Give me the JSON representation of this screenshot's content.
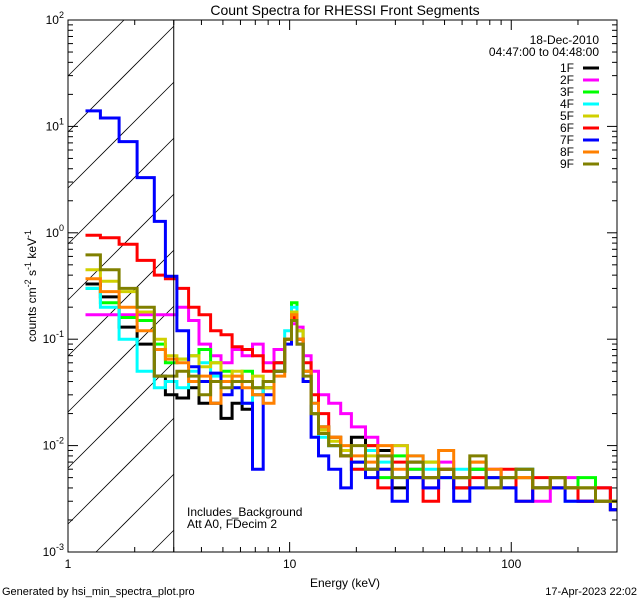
{
  "chart_data": {
    "type": "line",
    "title": "Count Spectra for RHESSI Front Segments",
    "xlabel": "Energy (keV)",
    "ylabel": "counts cm-2 s-1 keV-1",
    "xscale": "log",
    "yscale": "log",
    "xlim": [
      1,
      300
    ],
    "ylim": [
      0.001,
      100
    ],
    "x_ticks": [
      {
        "v": 1,
        "label": "1"
      },
      {
        "v": 10,
        "label": "10"
      },
      {
        "v": 100,
        "label": "100"
      }
    ],
    "y_ticks": [
      {
        "v": 0.001,
        "exp": "-3"
      },
      {
        "v": 0.01,
        "exp": "-2"
      },
      {
        "v": 0.1,
        "exp": "-1"
      },
      {
        "v": 1,
        "exp": "0"
      },
      {
        "v": 10,
        "exp": "1"
      },
      {
        "v": 100,
        "exp": "2"
      }
    ],
    "excluded_region_keV": [
      1,
      3
    ],
    "date": "18-Dec-2010",
    "time_range": "04:47:00 to 04:48:00",
    "annotations": [
      "Includes_Background",
      "Att A0, FDecim 2"
    ],
    "legend_position": "top-right",
    "bin_edges_keV": [
      1.2,
      1.4,
      1.7,
      2.05,
      2.45,
      2.75,
      3.1,
      3.5,
      3.9,
      4.4,
      4.9,
      5.5,
      6.1,
      6.8,
      7.6,
      8.5,
      9.5,
      10.2,
      10.8,
      11.5,
      12.5,
      13.5,
      15,
      17,
      19,
      22,
      25,
      29,
      34,
      40,
      47,
      55,
      65,
      77,
      90,
      105,
      125,
      150,
      175,
      200,
      240,
      280,
      300
    ],
    "series": [
      {
        "name": "1F",
        "color": "#000000",
        "values": [
          0.33,
          0.25,
          0.13,
          0.09,
          0.045,
          0.03,
          0.028,
          0.035,
          0.025,
          0.025,
          0.018,
          0.025,
          0.022,
          0.03,
          0.035,
          0.06,
          0.1,
          0.15,
          0.1,
          0.05,
          0.02,
          0.015,
          0.01,
          0.008,
          0.012,
          0.006,
          0.009,
          0.004,
          0.007,
          0.005,
          0.006,
          0.004,
          0.006,
          0.005,
          0.004,
          0.006,
          0.004,
          0.005,
          0.004,
          0.003,
          0.004,
          0.0025
        ]
      },
      {
        "name": "2F",
        "color": "#ff00ff",
        "values": [
          0.17,
          0.17,
          0.17,
          0.17,
          0.17,
          0.17,
          0.2,
          0.15,
          0.09,
          0.07,
          0.06,
          0.08,
          0.07,
          0.09,
          0.06,
          0.08,
          0.1,
          0.14,
          0.13,
          0.07,
          0.05,
          0.03,
          0.025,
          0.02,
          0.015,
          0.012,
          0.008,
          0.01,
          0.006,
          0.004,
          0.007,
          0.005,
          0.004,
          0.006,
          0.004,
          0.005,
          0.003,
          0.004,
          0.005,
          0.003,
          0.004,
          0.003
        ]
      },
      {
        "name": "3F",
        "color": "#00ff00",
        "values": [
          0.3,
          0.22,
          0.16,
          0.15,
          0.09,
          0.06,
          0.065,
          0.07,
          0.08,
          0.06,
          0.05,
          0.04,
          0.05,
          0.035,
          0.04,
          0.05,
          0.1,
          0.22,
          0.12,
          0.05,
          0.02,
          0.015,
          0.012,
          0.009,
          0.007,
          0.01,
          0.005,
          0.008,
          0.006,
          0.007,
          0.005,
          0.005,
          0.006,
          0.004,
          0.005,
          0.005,
          0.004,
          0.004,
          0.004,
          0.005,
          0.003,
          0.003
        ]
      },
      {
        "name": "4F",
        "color": "#00ffff",
        "values": [
          0.3,
          0.2,
          0.1,
          0.05,
          0.035,
          0.04,
          0.035,
          0.05,
          0.06,
          0.045,
          0.04,
          0.035,
          0.025,
          0.03,
          0.04,
          0.06,
          0.12,
          0.2,
          0.1,
          0.05,
          0.025,
          0.012,
          0.01,
          0.008,
          0.006,
          0.009,
          0.007,
          0.005,
          0.008,
          0.006,
          0.005,
          0.006,
          0.004,
          0.005,
          0.004,
          0.006,
          0.004,
          0.005,
          0.003,
          0.004,
          0.003,
          0.0025
        ]
      },
      {
        "name": "5F",
        "color": "#d0d000",
        "values": [
          0.45,
          0.35,
          0.28,
          0.18,
          0.1,
          0.07,
          0.065,
          0.07,
          0.055,
          0.06,
          0.045,
          0.05,
          0.04,
          0.045,
          0.035,
          0.05,
          0.1,
          0.18,
          0.12,
          0.05,
          0.02,
          0.014,
          0.011,
          0.009,
          0.007,
          0.008,
          0.006,
          0.01,
          0.005,
          0.007,
          0.006,
          0.005,
          0.007,
          0.005,
          0.004,
          0.005,
          0.004,
          0.005,
          0.004,
          0.004,
          0.003,
          0.003
        ]
      },
      {
        "name": "6F",
        "color": "#ff0000",
        "values": [
          0.95,
          0.9,
          0.78,
          0.55,
          0.4,
          0.37,
          0.3,
          0.2,
          0.17,
          0.12,
          0.11,
          0.085,
          0.08,
          0.07,
          0.05,
          0.06,
          0.1,
          0.16,
          0.1,
          0.06,
          0.03,
          0.02,
          0.012,
          0.008,
          0.006,
          0.01,
          0.004,
          0.007,
          0.005,
          0.003,
          0.006,
          0.004,
          0.005,
          0.004,
          0.006,
          0.003,
          0.005,
          0.004,
          0.004,
          0.003,
          0.004,
          0.0025
        ]
      },
      {
        "name": "7F",
        "color": "#0000ff",
        "values": [
          14,
          12,
          7.2,
          3.3,
          1.28,
          0.39,
          0.12,
          0.055,
          0.04,
          0.048,
          0.03,
          0.035,
          0.025,
          0.006,
          0.03,
          0.05,
          0.09,
          0.15,
          0.09,
          0.04,
          0.012,
          0.008,
          0.006,
          0.004,
          0.007,
          0.005,
          0.006,
          0.003,
          0.005,
          0.004,
          0.005,
          0.003,
          0.004,
          0.005,
          0.004,
          0.003,
          0.004,
          0.004,
          0.003,
          0.003,
          0.003,
          0.0025
        ]
      },
      {
        "name": "8F",
        "color": "#ff8000",
        "values": [
          0.37,
          0.28,
          0.2,
          0.12,
          0.08,
          0.065,
          0.06,
          0.04,
          0.045,
          0.025,
          0.04,
          0.045,
          0.035,
          0.03,
          0.025,
          0.045,
          0.1,
          0.17,
          0.1,
          0.05,
          0.025,
          0.015,
          0.012,
          0.01,
          0.008,
          0.007,
          0.01,
          0.006,
          0.008,
          0.005,
          0.009,
          0.005,
          0.007,
          0.006,
          0.005,
          0.005,
          0.004,
          0.005,
          0.004,
          0.004,
          0.003,
          0.003
        ]
      },
      {
        "name": "9F",
        "color": "#808000",
        "values": [
          0.62,
          0.45,
          0.3,
          0.2,
          0.045,
          0.045,
          0.05,
          0.045,
          0.03,
          0.04,
          0.035,
          0.04,
          0.04,
          0.035,
          0.04,
          0.05,
          0.1,
          0.15,
          0.09,
          0.045,
          0.02,
          0.013,
          0.01,
          0.008,
          0.01,
          0.006,
          0.008,
          0.005,
          0.007,
          0.005,
          0.006,
          0.005,
          0.008,
          0.004,
          0.005,
          0.006,
          0.004,
          0.005,
          0.004,
          0.004,
          0.003,
          0.003
        ]
      }
    ]
  },
  "footer": {
    "generated_by": "Generated by hsi_min_spectra_plot.pro",
    "timestamp": "17-Apr-2023 22:02"
  }
}
